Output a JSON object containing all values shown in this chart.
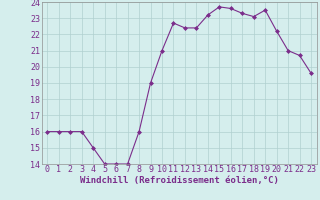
{
  "x": [
    0,
    1,
    2,
    3,
    4,
    5,
    6,
    7,
    8,
    9,
    10,
    11,
    12,
    13,
    14,
    15,
    16,
    17,
    18,
    19,
    20,
    21,
    22,
    23
  ],
  "y": [
    16,
    16,
    16,
    16,
    15,
    14,
    14,
    14,
    16,
    19,
    21,
    22.7,
    22.4,
    22.4,
    23.2,
    23.7,
    23.6,
    23.3,
    23.1,
    23.5,
    22.2,
    21.0,
    20.7,
    19.6
  ],
  "line_color": "#7b2d8b",
  "marker": "D",
  "marker_size": 2,
  "bg_color": "#d5eeed",
  "grid_color": "#b0d0d0",
  "xlabel": "Windchill (Refroidissement éolien,°C)",
  "xlabel_fontsize": 6.5,
  "tick_fontsize": 6.0,
  "tick_color": "#7b2d8b",
  "ylim": [
    14,
    24
  ],
  "yticks": [
    14,
    15,
    16,
    17,
    18,
    19,
    20,
    21,
    22,
    23,
    24
  ],
  "xticks": [
    0,
    1,
    2,
    3,
    4,
    5,
    6,
    7,
    8,
    9,
    10,
    11,
    12,
    13,
    14,
    15,
    16,
    17,
    18,
    19,
    20,
    21,
    22,
    23
  ]
}
